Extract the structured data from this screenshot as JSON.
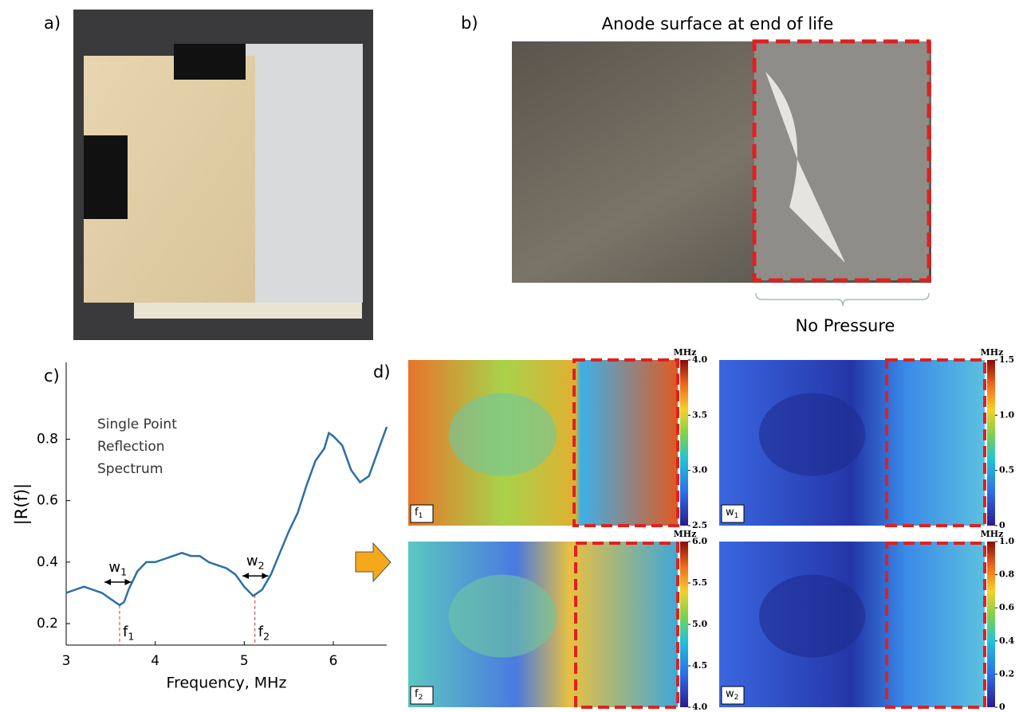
{
  "panel_labels": [
    "a)",
    "b)",
    "c)",
    "d)"
  ],
  "photo_title": "Anode surface at end of life",
  "photo_annotation": "No Pressure",
  "chart_data": {
    "type": "line",
    "annotation": [
      "Single Point",
      "Reflection",
      "Spectrum"
    ],
    "xlabel": "Frequency, MHz",
    "ylabel": "|R(f)|",
    "x": [
      3.0,
      3.1,
      3.2,
      3.3,
      3.4,
      3.5,
      3.6,
      3.65,
      3.7,
      3.8,
      3.9,
      4.0,
      4.1,
      4.2,
      4.3,
      4.4,
      4.5,
      4.6,
      4.7,
      4.8,
      4.9,
      5.0,
      5.1,
      5.2,
      5.3,
      5.4,
      5.5,
      5.6,
      5.7,
      5.8,
      5.9,
      5.95,
      6.0,
      6.1,
      6.2,
      6.3,
      6.4,
      6.5,
      6.6
    ],
    "series": [
      {
        "color": "#2a6fa8",
        "values": [
          0.3,
          0.31,
          0.32,
          0.31,
          0.3,
          0.28,
          0.26,
          0.27,
          0.31,
          0.37,
          0.4,
          0.4,
          0.41,
          0.42,
          0.43,
          0.42,
          0.42,
          0.4,
          0.39,
          0.38,
          0.36,
          0.32,
          0.29,
          0.31,
          0.36,
          0.43,
          0.5,
          0.56,
          0.65,
          0.73,
          0.77,
          0.82,
          0.81,
          0.78,
          0.7,
          0.66,
          0.68,
          0.76,
          0.84
        ]
      }
    ],
    "xlim": [
      3,
      6.6
    ],
    "ylim": [
      0.13,
      1.05
    ],
    "xticks": [
      3,
      4,
      5,
      6
    ],
    "yticks": [
      0.2,
      0.4,
      0.6,
      0.8
    ],
    "markers": [
      {
        "x": 3.6,
        "label": "f",
        "sub": "1"
      },
      {
        "x": 5.12,
        "label": "f",
        "sub": "2"
      }
    ],
    "widths": [
      {
        "x": [
          3.43,
          3.73
        ],
        "y": 0.335,
        "label": "w",
        "sub": "1"
      },
      {
        "x": [
          4.98,
          5.27
        ],
        "y": 0.355,
        "label": "w",
        "sub": "2"
      }
    ]
  },
  "maps": [
    {
      "label": "f",
      "sub": "1",
      "unit": "MHz",
      "clim": [
        2.5,
        4.0
      ],
      "cticks": [
        2.5,
        {
          "value": 3.0,
          "label": "3.0"
        },
        3.5,
        {
          "value": 4.0,
          "label": "4.0"
        }
      ]
    },
    {
      "label": "w",
      "sub": "1",
      "unit": "MHz",
      "clim": [
        0,
        1.5
      ],
      "cticks": [
        0,
        0.5,
        {
          "value": 1.0,
          "label": "1.0"
        },
        1.5
      ]
    },
    {
      "label": "f",
      "sub": "2",
      "unit": "MHz",
      "clim": [
        4.0,
        6.0
      ],
      "cticks": [
        {
          "value": 4.0,
          "label": "4.0"
        },
        4.5,
        {
          "value": 5.0,
          "label": "5.0"
        },
        5.5,
        {
          "value": 6.0,
          "label": "6.0"
        }
      ]
    },
    {
      "label": "w",
      "sub": "2",
      "unit": "MHz",
      "clim": [
        0,
        1.0
      ],
      "cticks": [
        0,
        0.2,
        0.4,
        0.6,
        0.8,
        {
          "value": 1.0,
          "label": "1.0"
        }
      ]
    }
  ]
}
